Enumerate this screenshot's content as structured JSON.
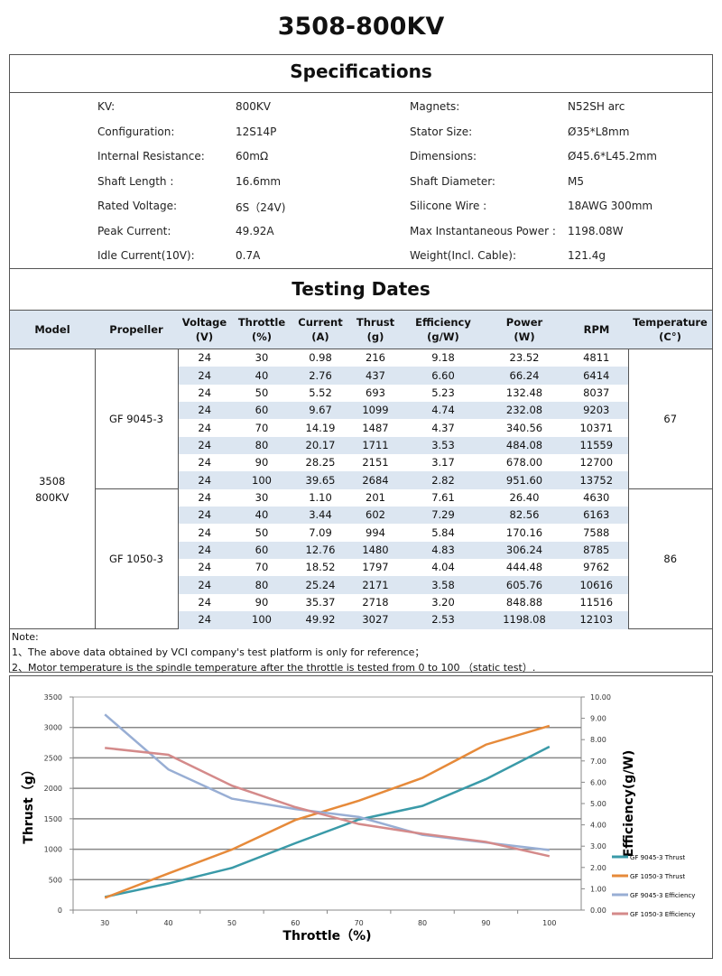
{
  "title": "3508-800KV",
  "specifications": {
    "heading": "Specifications",
    "left": [
      {
        "label": "KV:",
        "value": "800KV"
      },
      {
        "label": "Configuration:",
        "value": "12S14P"
      },
      {
        "label": "Internal Resistance:",
        "value": "60mΩ"
      },
      {
        "label": "Shaft Length :",
        "value": "16.6mm"
      },
      {
        "label": "Rated Voltage:",
        "value": "6S（24V)"
      },
      {
        "label": "Peak Current:",
        "value": "49.92A"
      },
      {
        "label": "Idle Current(10V):",
        "value": "0.7A"
      }
    ],
    "right": [
      {
        "label": "Magnets:",
        "value": "N52SH   arc"
      },
      {
        "label": "Stator Size:",
        "value": "Ø35*L8mm"
      },
      {
        "label": "Dimensions:",
        "value": "Ø45.6*L45.2mm"
      },
      {
        "label": "Shaft Diameter:",
        "value": "M5"
      },
      {
        "label": "Silicone Wire :",
        "value": "18AWG 300mm"
      },
      {
        "label": "Max Instantaneous Power :",
        "value": "1198.08W"
      },
      {
        "label": "Weight(Incl. Cable):",
        "value": "121.4g"
      }
    ]
  },
  "testing": {
    "heading": "Testing Dates",
    "columns": [
      [
        "Model",
        ""
      ],
      [
        "Propeller",
        ""
      ],
      [
        "Voltage",
        "(V)"
      ],
      [
        "Throttle",
        "(%)"
      ],
      [
        "Current",
        "(A)"
      ],
      [
        "Thrust",
        "(g)"
      ],
      [
        "Efficiency",
        "(g/W)"
      ],
      [
        "Power",
        "(W)"
      ],
      [
        "RPM",
        ""
      ],
      [
        "Temperature",
        "(C°)"
      ]
    ],
    "model": "3508\n800KV",
    "groups": [
      {
        "propeller": "GF 9045-3",
        "temperature": "67",
        "rows": [
          [
            "24",
            "30",
            "0.98",
            "216",
            "9.18",
            "23.52",
            "4811"
          ],
          [
            "24",
            "40",
            "2.76",
            "437",
            "6.60",
            "66.24",
            "6414"
          ],
          [
            "24",
            "50",
            "5.52",
            "693",
            "5.23",
            "132.48",
            "8037"
          ],
          [
            "24",
            "60",
            "9.67",
            "1099",
            "4.74",
            "232.08",
            "9203"
          ],
          [
            "24",
            "70",
            "14.19",
            "1487",
            "4.37",
            "340.56",
            "10371"
          ],
          [
            "24",
            "80",
            "20.17",
            "1711",
            "3.53",
            "484.08",
            "11559"
          ],
          [
            "24",
            "90",
            "28.25",
            "2151",
            "3.17",
            "678.00",
            "12700"
          ],
          [
            "24",
            "100",
            "39.65",
            "2684",
            "2.82",
            "951.60",
            "13752"
          ]
        ]
      },
      {
        "propeller": "GF 1050-3",
        "temperature": "86",
        "rows": [
          [
            "24",
            "30",
            "1.10",
            "201",
            "7.61",
            "26.40",
            "4630"
          ],
          [
            "24",
            "40",
            "3.44",
            "602",
            "7.29",
            "82.56",
            "6163"
          ],
          [
            "24",
            "50",
            "7.09",
            "994",
            "5.84",
            "170.16",
            "7588"
          ],
          [
            "24",
            "60",
            "12.76",
            "1480",
            "4.83",
            "306.24",
            "8785"
          ],
          [
            "24",
            "70",
            "18.52",
            "1797",
            "4.04",
            "444.48",
            "9762"
          ],
          [
            "24",
            "80",
            "25.24",
            "2171",
            "3.58",
            "605.76",
            "10616"
          ],
          [
            "24",
            "90",
            "35.37",
            "2718",
            "3.20",
            "848.88",
            "11516"
          ],
          [
            "24",
            "100",
            "49.92",
            "3027",
            "2.53",
            "1198.08",
            "12103"
          ]
        ]
      }
    ],
    "shade_color": "#dce6f1"
  },
  "notes": [
    "Note:",
    "1、The above data obtained by VCI company's test platform is only for reference；",
    "2、Motor temperature is the spindle temperature after the throttle is tested from 0 to 100 （static test）."
  ],
  "chart_data": {
    "type": "line",
    "xlabel": "Throttle（%)",
    "ylabel": "Thrust（g）",
    "y2label": "Efficiency(g/W)",
    "categories": [
      "30",
      "40",
      "50",
      "60",
      "70",
      "80",
      "90",
      "100"
    ],
    "ylim": [
      0,
      3500
    ],
    "yticks": [
      "0",
      "500",
      "1000",
      "1500",
      "2000",
      "2500",
      "3000",
      "3500"
    ],
    "y2lim": [
      0,
      10
    ],
    "y2ticks": [
      "0.00",
      "1.00",
      "2.00",
      "3.00",
      "4.00",
      "5.00",
      "6.00",
      "7.00",
      "8.00",
      "9.00",
      "10.00"
    ],
    "grid": true,
    "legend": "right",
    "series": [
      {
        "name": "GF 9045-3 Thrust",
        "axis": "left",
        "color": "#3a9aa8",
        "values": [
          216,
          437,
          693,
          1099,
          1487,
          1711,
          2151,
          2684
        ]
      },
      {
        "name": "GF 1050-3 Thrust",
        "axis": "left",
        "color": "#e68a3a",
        "values": [
          201,
          602,
          994,
          1480,
          1797,
          2171,
          2718,
          3027
        ]
      },
      {
        "name": "GF 9045-3 Efficiency",
        "axis": "right",
        "color": "#98aed4",
        "values": [
          9.18,
          6.6,
          5.23,
          4.74,
          4.37,
          3.53,
          3.17,
          2.82
        ]
      },
      {
        "name": "GF 1050-3 Efficiency",
        "axis": "right",
        "color": "#d48a8a",
        "values": [
          7.61,
          7.29,
          5.84,
          4.83,
          4.04,
          3.58,
          3.2,
          2.53
        ]
      }
    ]
  }
}
